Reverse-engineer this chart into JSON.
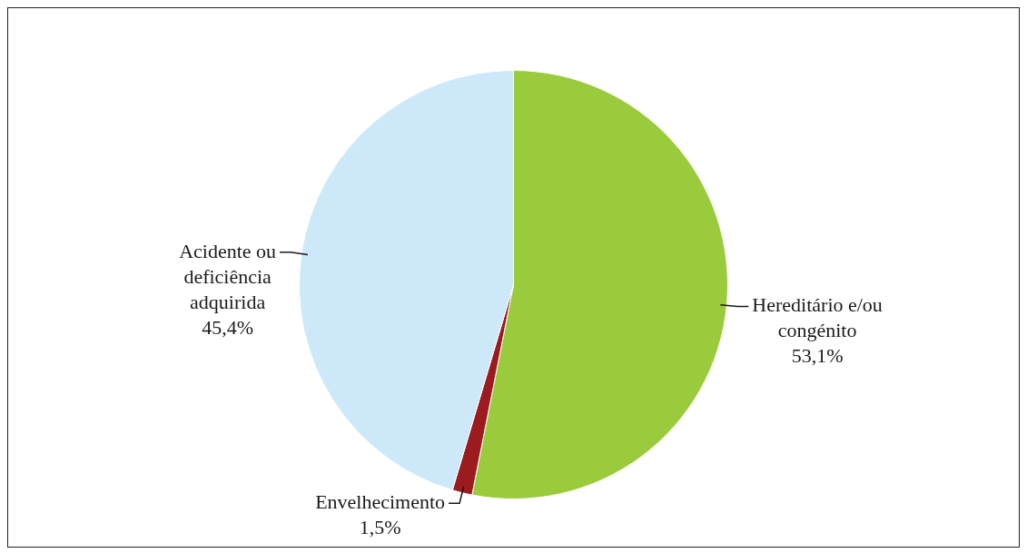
{
  "chart_data": {
    "type": "pie",
    "categories": [
      "Hereditário e/ou congénito",
      "Envelhecimento",
      "Acidente ou deficiência adquirida"
    ],
    "values": [
      53.1,
      1.5,
      45.4
    ],
    "colors": [
      "#9acb3c",
      "#9b1b1f",
      "#cde8f8"
    ],
    "value_labels": [
      "53,1%",
      "1,5%",
      "45,4%"
    ],
    "legend": false
  }
}
